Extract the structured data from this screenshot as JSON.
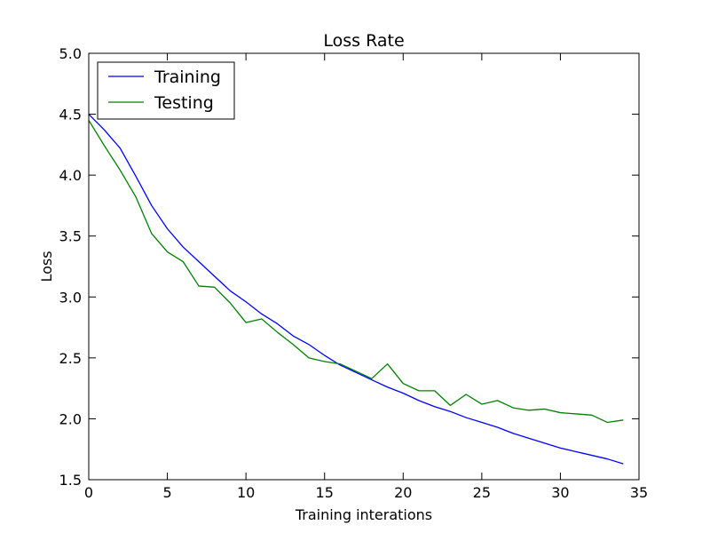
{
  "chart_data": {
    "type": "line",
    "title": "Loss Rate",
    "xlabel": "Training interations",
    "ylabel": "Loss",
    "xlim": [
      0,
      35
    ],
    "ylim": [
      1.5,
      5.0
    ],
    "xticks": [
      "0",
      "5",
      "10",
      "15",
      "20",
      "25",
      "30",
      "35"
    ],
    "yticks": [
      "1.5",
      "2.0",
      "2.5",
      "3.0",
      "3.5",
      "4.0",
      "4.5",
      "5.0"
    ],
    "grid": false,
    "legend_position": "top-left",
    "x": [
      0,
      1,
      2,
      3,
      4,
      5,
      6,
      7,
      8,
      9,
      10,
      11,
      12,
      13,
      14,
      15,
      16,
      17,
      18,
      19,
      20,
      21,
      22,
      23,
      24,
      25,
      26,
      27,
      28,
      29,
      30,
      31,
      32,
      33,
      34
    ],
    "series": [
      {
        "name": "Training",
        "color": "#0000ff",
        "values": [
          4.5,
          4.37,
          4.22,
          3.99,
          3.75,
          3.56,
          3.41,
          3.29,
          3.17,
          3.05,
          2.96,
          2.86,
          2.78,
          2.68,
          2.61,
          2.52,
          2.44,
          2.38,
          2.32,
          2.26,
          2.21,
          2.15,
          2.1,
          2.06,
          2.01,
          1.97,
          1.93,
          1.88,
          1.84,
          1.8,
          1.76,
          1.73,
          1.7,
          1.67,
          1.63
        ]
      },
      {
        "name": "Testing",
        "color": "#008000",
        "values": [
          4.45,
          4.24,
          4.04,
          3.82,
          3.52,
          3.37,
          3.29,
          3.09,
          3.08,
          2.95,
          2.79,
          2.82,
          2.71,
          2.61,
          2.5,
          2.47,
          2.45,
          2.39,
          2.33,
          2.45,
          2.29,
          2.23,
          2.23,
          2.11,
          2.2,
          2.12,
          2.15,
          2.09,
          2.07,
          2.08,
          2.05,
          2.04,
          2.03,
          1.97,
          1.99
        ]
      }
    ]
  }
}
